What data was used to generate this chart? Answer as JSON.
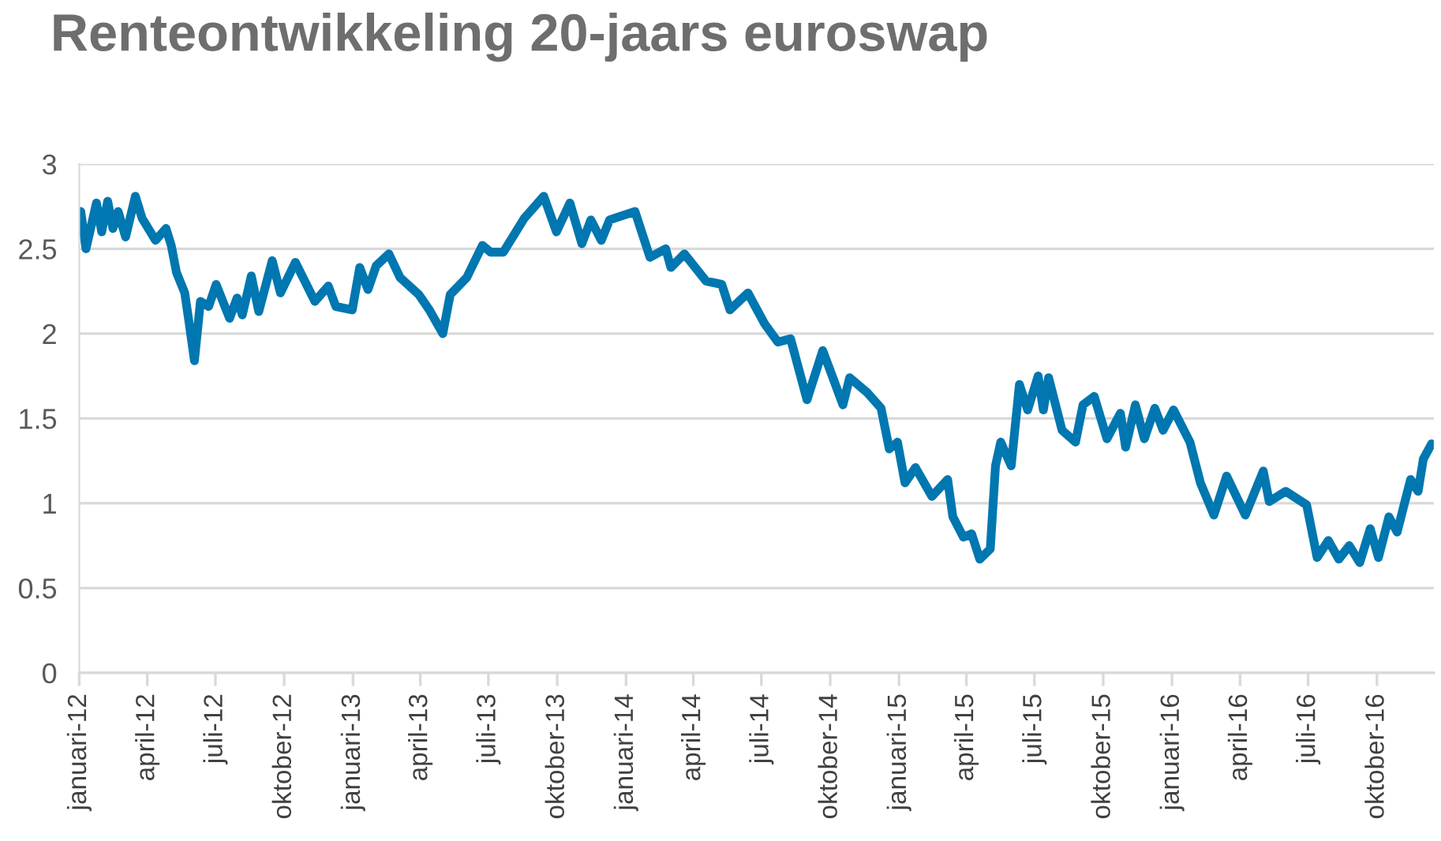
{
  "chart_data": {
    "type": "line",
    "title": "Renteontwikkeling 20-jaars euroswap",
    "x": [
      "2012-01-03",
      "2012-01-10",
      "2012-01-24",
      "2012-01-31",
      "2012-02-08",
      "2012-02-15",
      "2012-02-22",
      "2012-03-03",
      "2012-03-16",
      "2012-03-25",
      "2012-04-12",
      "2012-04-26",
      "2012-05-03",
      "2012-05-10",
      "2012-05-21",
      "2012-05-27",
      "2012-06-03",
      "2012-06-11",
      "2012-06-22",
      "2012-07-02",
      "2012-07-20",
      "2012-07-30",
      "2012-08-06",
      "2012-08-18",
      "2012-08-28",
      "2012-09-15",
      "2012-09-26",
      "2012-10-16",
      "2012-11-11",
      "2012-11-29",
      "2012-12-09",
      "2012-12-31",
      "2013-01-10",
      "2013-01-21",
      "2013-02-01",
      "2013-02-18",
      "2013-03-05",
      "2013-03-30",
      "2013-04-13",
      "2013-05-01",
      "2013-05-11",
      "2013-06-02",
      "2013-06-23",
      "2013-07-04",
      "2013-07-21",
      "2013-08-18",
      "2013-09-13",
      "2013-09-30",
      "2013-10-18",
      "2013-11-03",
      "2013-11-15",
      "2013-11-29",
      "2013-12-10",
      "2014-01-13",
      "2014-02-02",
      "2014-02-23",
      "2014-03-02",
      "2014-03-20",
      "2014-04-18",
      "2014-05-09",
      "2014-05-20",
      "2014-06-13",
      "2014-07-05",
      "2014-07-23",
      "2014-08-09",
      "2014-08-31",
      "2014-09-21",
      "2014-10-02",
      "2014-10-18",
      "2014-10-27",
      "2014-11-20",
      "2014-12-08",
      "2014-12-19",
      "2014-12-30",
      "2015-01-09",
      "2015-01-23",
      "2015-02-14",
      "2015-03-07",
      "2015-03-14",
      "2015-03-28",
      "2015-04-08",
      "2015-04-19",
      "2015-05-03",
      "2015-05-10",
      "2015-05-17",
      "2015-05-31",
      "2015-06-11",
      "2015-06-22",
      "2015-07-06",
      "2015-07-13",
      "2015-07-20",
      "2015-08-07",
      "2015-08-25",
      "2015-09-04",
      "2015-09-19",
      "2015-10-06",
      "2015-10-24",
      "2015-10-31",
      "2015-11-13",
      "2015-11-25",
      "2015-12-09",
      "2015-12-20",
      "2016-01-03",
      "2016-01-25",
      "2016-02-08",
      "2016-02-26",
      "2016-03-14",
      "2016-04-08",
      "2016-05-02",
      "2016-05-10",
      "2016-06-01",
      "2016-06-29",
      "2016-07-13",
      "2016-07-28",
      "2016-08-11",
      "2016-08-25",
      "2016-09-08",
      "2016-09-22",
      "2016-10-03",
      "2016-10-17",
      "2016-10-28",
      "2016-11-15",
      "2016-11-25",
      "2016-12-02",
      "2016-12-13"
    ],
    "series": [
      {
        "color": "#0077b0",
        "values": [
          2.72,
          2.5,
          2.77,
          2.6,
          2.78,
          2.62,
          2.72,
          2.57,
          2.81,
          2.68,
          2.55,
          2.62,
          2.52,
          2.36,
          2.24,
          2.06,
          1.84,
          2.19,
          2.16,
          2.29,
          2.09,
          2.21,
          2.11,
          2.34,
          2.13,
          2.43,
          2.24,
          2.42,
          2.19,
          2.28,
          2.16,
          2.14,
          2.39,
          2.26,
          2.4,
          2.47,
          2.33,
          2.23,
          2.14,
          2.0,
          2.23,
          2.33,
          2.52,
          2.48,
          2.48,
          2.68,
          2.81,
          2.6,
          2.77,
          2.53,
          2.67,
          2.55,
          2.67,
          2.72,
          2.45,
          2.5,
          2.39,
          2.47,
          2.31,
          2.29,
          2.14,
          2.24,
          2.06,
          1.95,
          1.97,
          1.61,
          1.9,
          1.77,
          1.58,
          1.74,
          1.65,
          1.56,
          1.32,
          1.36,
          1.12,
          1.21,
          1.04,
          1.14,
          0.92,
          0.8,
          0.82,
          0.67,
          0.73,
          1.22,
          1.36,
          1.22,
          1.7,
          1.55,
          1.75,
          1.55,
          1.74,
          1.43,
          1.36,
          1.58,
          1.63,
          1.38,
          1.53,
          1.33,
          1.58,
          1.38,
          1.56,
          1.43,
          1.55,
          1.36,
          1.12,
          0.93,
          1.16,
          0.93,
          1.19,
          1.01,
          1.07,
          0.99,
          0.68,
          0.78,
          0.67,
          0.75,
          0.65,
          0.85,
          0.68,
          0.92,
          0.83,
          1.14,
          1.07,
          1.26,
          1.35
        ]
      }
    ],
    "xlim": [
      "2012-01-01",
      "2016-12-16"
    ],
    "xticks": [
      {
        "value": "2012-01-01",
        "label": "januari-12"
      },
      {
        "value": "2012-04-01",
        "label": "april-12"
      },
      {
        "value": "2012-07-01",
        "label": "juli-12"
      },
      {
        "value": "2012-10-01",
        "label": "oktober-12"
      },
      {
        "value": "2013-01-01",
        "label": "januari-13"
      },
      {
        "value": "2013-04-01",
        "label": "april-13"
      },
      {
        "value": "2013-07-01",
        "label": "juli-13"
      },
      {
        "value": "2013-10-01",
        "label": "oktober-13"
      },
      {
        "value": "2014-01-01",
        "label": "januari-14"
      },
      {
        "value": "2014-04-01",
        "label": "april-14"
      },
      {
        "value": "2014-07-01",
        "label": "juli-14"
      },
      {
        "value": "2014-10-01",
        "label": "oktober-14"
      },
      {
        "value": "2015-01-01",
        "label": "januari-15"
      },
      {
        "value": "2015-04-01",
        "label": "april-15"
      },
      {
        "value": "2015-07-01",
        "label": "juli-15"
      },
      {
        "value": "2015-10-01",
        "label": "oktober-15"
      },
      {
        "value": "2016-01-01",
        "label": "januari-16"
      },
      {
        "value": "2016-04-01",
        "label": "april-16"
      },
      {
        "value": "2016-07-01",
        "label": "juli-16"
      },
      {
        "value": "2016-10-01",
        "label": "oktober-16"
      }
    ],
    "ylim": [
      0,
      3
    ],
    "yticks": [
      0,
      0.5,
      1,
      1.5,
      2,
      2.5,
      3
    ],
    "grid": "y",
    "marker": "none",
    "line_style": "solid"
  }
}
